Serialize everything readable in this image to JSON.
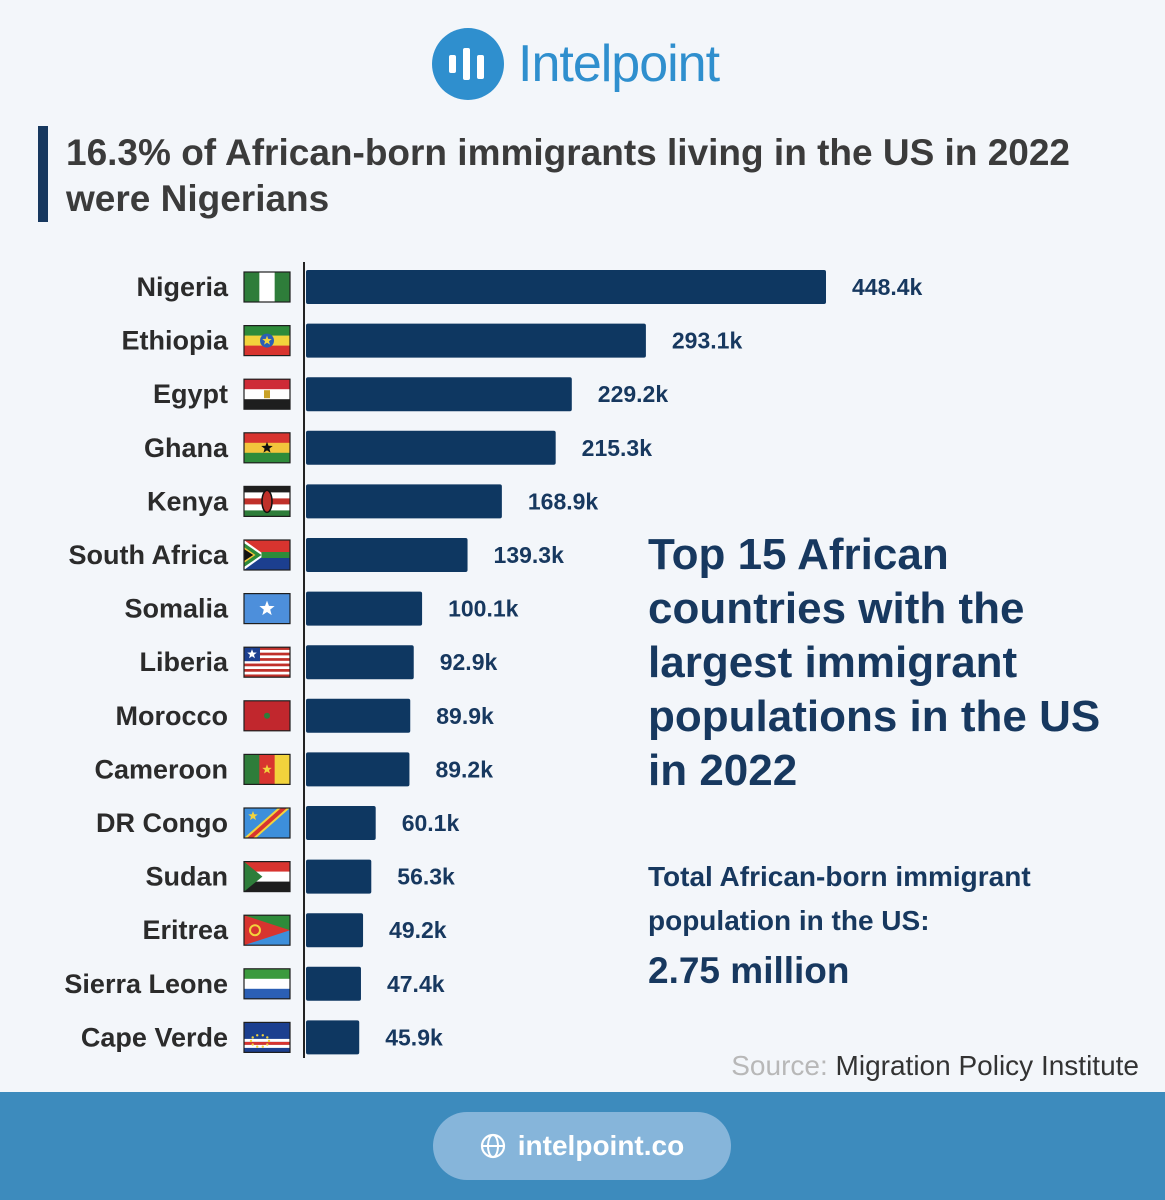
{
  "brand": {
    "name": "Intelpoint"
  },
  "headline": "16.3% of African-born immigrants living in the US in 2022 were Nigerians",
  "chart_data": {
    "type": "bar",
    "orientation": "horizontal",
    "title": "",
    "xlabel": "",
    "ylabel": "",
    "xlim": [
      0,
      448.4
    ],
    "grid": false,
    "legend": "none",
    "unit_suffix": "k",
    "bar_color": "#0e3761",
    "categories": [
      "Nigeria",
      "Ethiopia",
      "Egypt",
      "Ghana",
      "Kenya",
      "South Africa",
      "Somalia",
      "Liberia",
      "Morocco",
      "Cameroon",
      "DR Congo",
      "Sudan",
      "Eritrea",
      "Sierra Leone",
      "Cape Verde"
    ],
    "values": [
      448.4,
      293.1,
      229.2,
      215.3,
      168.9,
      139.3,
      100.1,
      92.9,
      89.9,
      89.2,
      60.1,
      56.3,
      49.2,
      47.4,
      45.9
    ],
    "labels": [
      "448.4k",
      "293.1k",
      "229.2k",
      "215.3k",
      "168.9k",
      "139.3k",
      "100.1k",
      "92.9k",
      "89.9k",
      "89.2k",
      "60.1k",
      "56.3k",
      "49.2k",
      "47.4k",
      "45.9k"
    ]
  },
  "side_panel": {
    "title": "Top 15 African countries with the largest immigrant populations in the US in 2022",
    "total_label": "Total African-born immigrant population in the US:",
    "total_value": "2.75 million"
  },
  "source": {
    "key": "Source:",
    "value": "Migration Policy Institute"
  },
  "footer": {
    "url": "intelpoint.co",
    "icon": "globe-icon"
  },
  "colors": {
    "accent": "#2f8fce",
    "navy": "#17385f",
    "bar": "#0e3761",
    "footer": "#3d8bbd",
    "pill": "#86b5da"
  }
}
